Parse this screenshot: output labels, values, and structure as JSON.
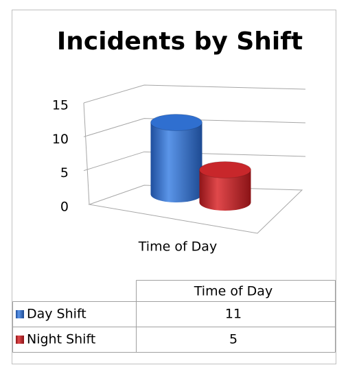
{
  "chart_data": {
    "type": "bar",
    "title": "Incidents by Shift",
    "categories": [
      "Time of Day"
    ],
    "series": [
      {
        "name": "Day Shift",
        "color": "#2f6fd0",
        "values": [
          11
        ]
      },
      {
        "name": "Night Shift",
        "color": "#c8272b",
        "values": [
          5
        ]
      }
    ],
    "ylim": [
      0,
      15
    ],
    "yticks": [
      0,
      5,
      10,
      15
    ],
    "grid": true
  }
}
